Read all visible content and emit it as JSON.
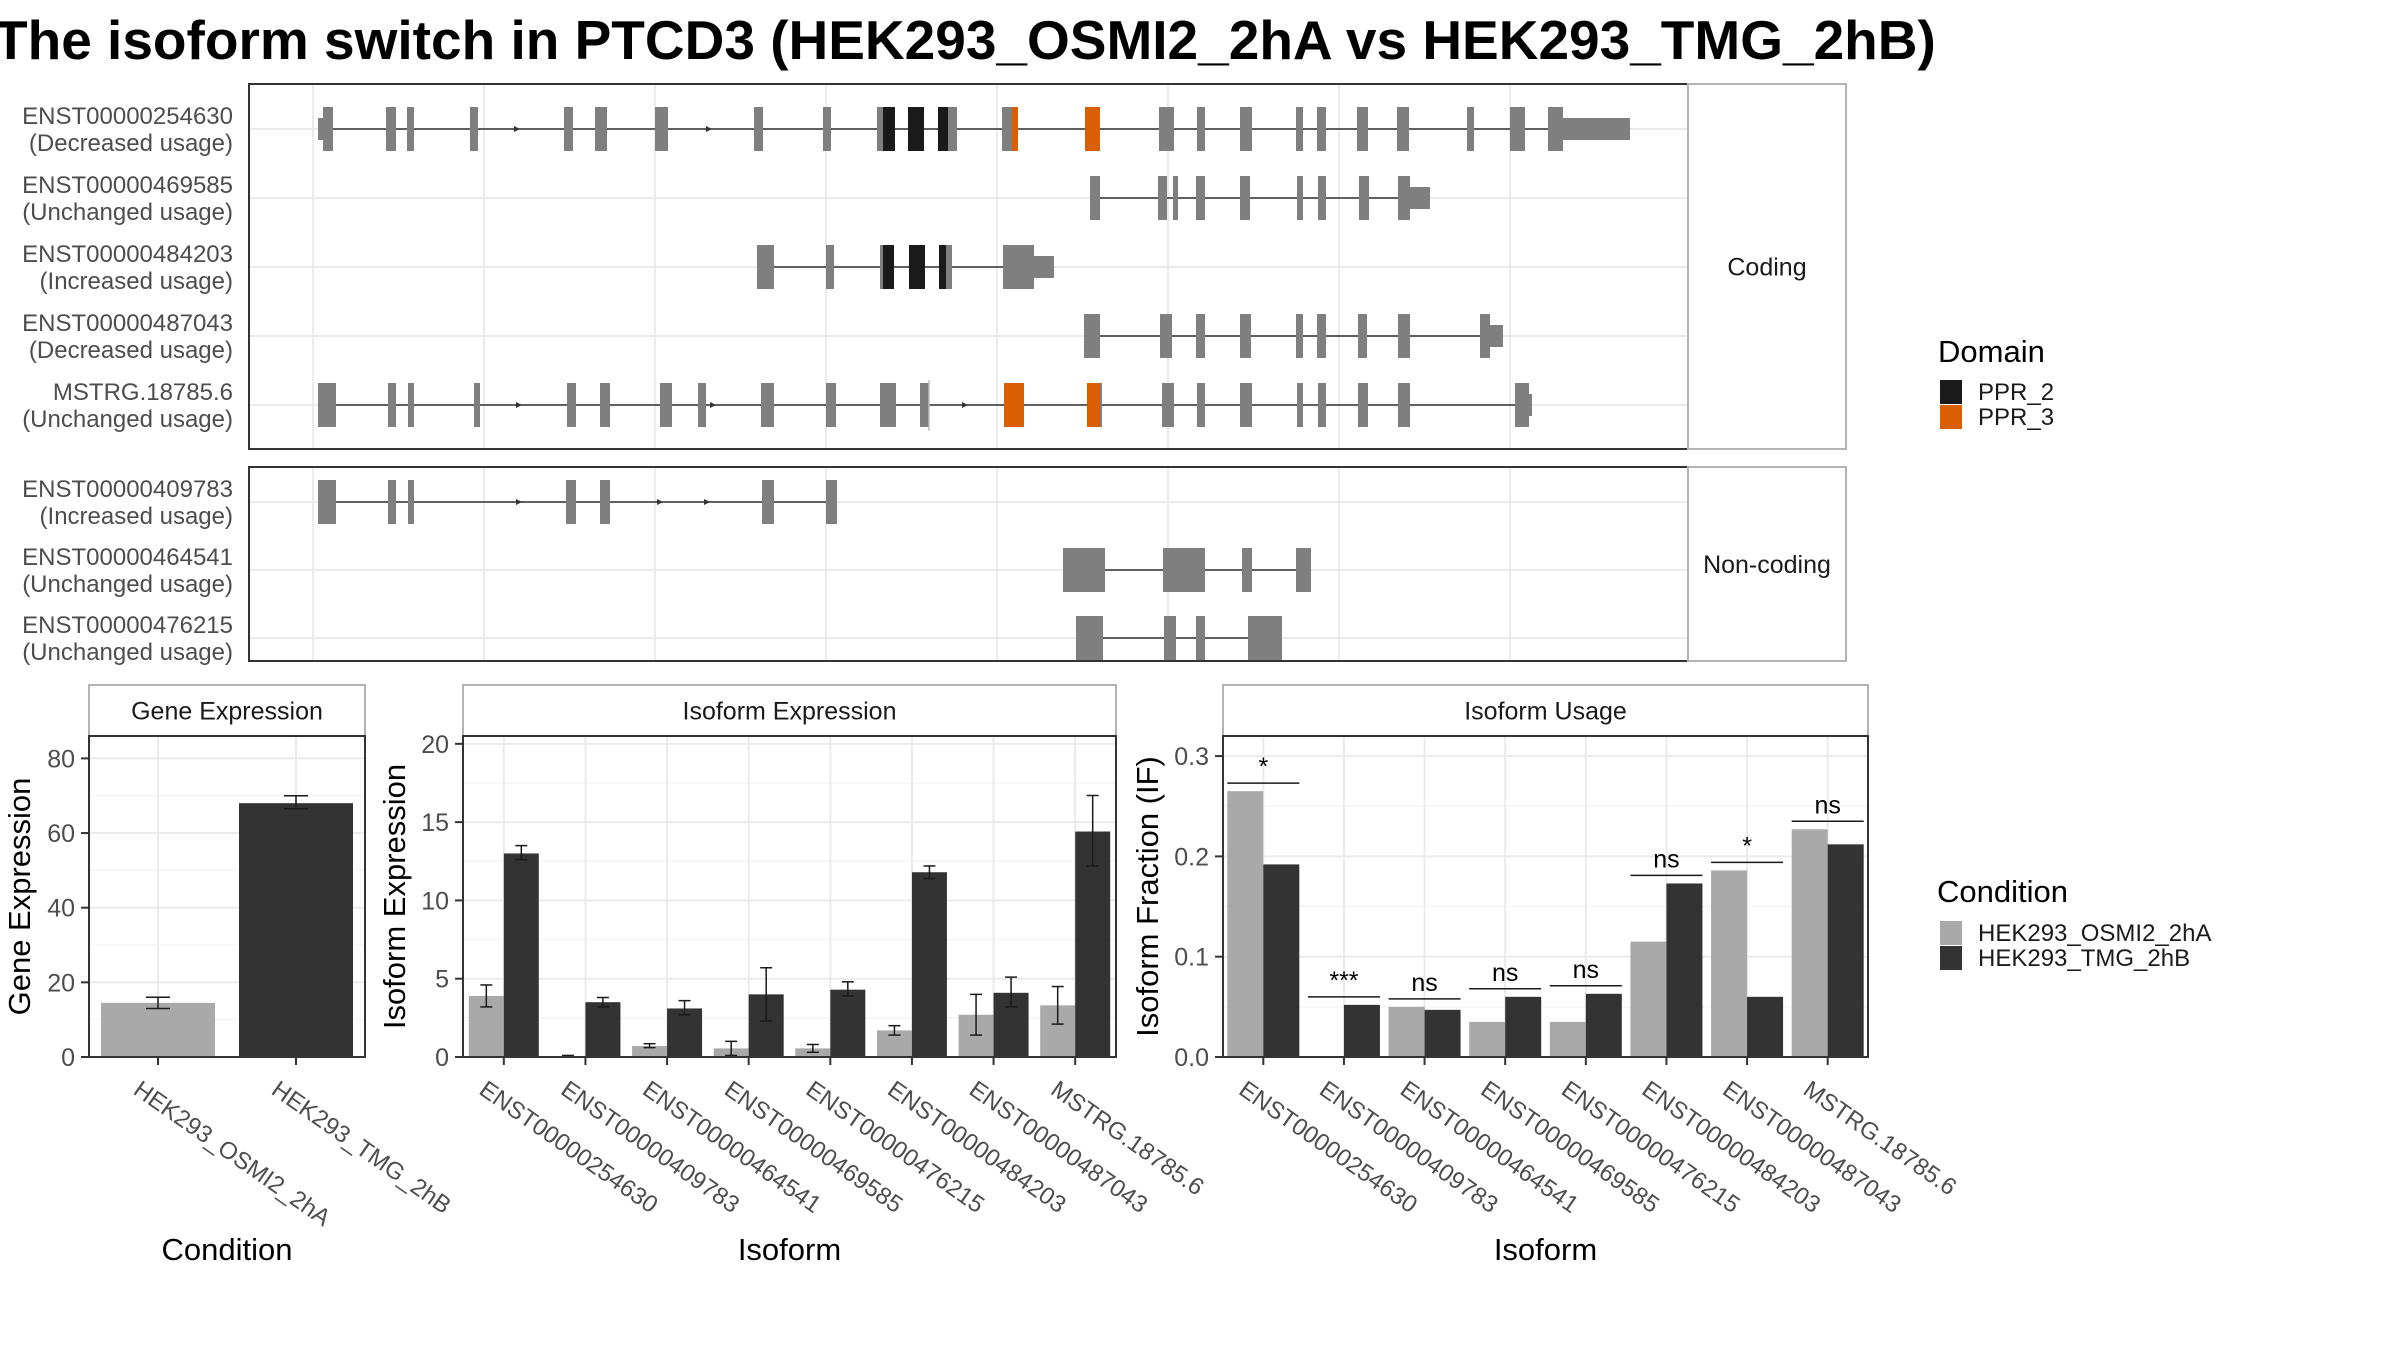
{
  "title": "The isoform switch in PTCD3 (HEK293_OSMI2_2hA vs HEK293_TMG_2hB)",
  "colors": {
    "exon": "#7f7f7f",
    "ppr2": "#1a1a1a",
    "ppr3": "#d95f02",
    "cond_a": "#a9a9a9",
    "cond_b": "#333333",
    "panel_border": "#333333",
    "strip_fill": "#ffffff",
    "grid": "#ebebeb"
  },
  "structure": {
    "facets": [
      "Coding",
      "Non-coding"
    ],
    "domain_legend": {
      "title": "Domain",
      "items": [
        {
          "name": "PPR_2",
          "color": "#1a1a1a"
        },
        {
          "name": "PPR_3",
          "color": "#d95f02"
        }
      ]
    },
    "coding": [
      {
        "id": "ENST00000254630",
        "usage": "(Decreased usage)"
      },
      {
        "id": "ENST00000469585",
        "usage": "(Unchanged usage)"
      },
      {
        "id": "ENST00000484203",
        "usage": "(Increased usage)"
      },
      {
        "id": "ENST00000487043",
        "usage": "(Decreased usage)"
      },
      {
        "id": "MSTRG.18785.6",
        "usage": "(Unchanged usage)"
      }
    ],
    "noncoding": [
      {
        "id": "ENST00000409783",
        "usage": "(Increased usage)"
      },
      {
        "id": "ENST00000464541",
        "usage": "(Unchanged usage)"
      },
      {
        "id": "ENST00000476215",
        "usage": "(Unchanged usage)"
      }
    ]
  },
  "chart_data": [
    {
      "type": "bar",
      "title": "Gene Expression",
      "xlabel": "Condition",
      "ylabel": "Gene Expression",
      "ylim": [
        0,
        86
      ],
      "yticks": [
        0,
        20,
        40,
        60,
        80
      ],
      "categories": [
        "HEK293_OSMI2_2hA",
        "HEK293_TMG_2hB"
      ],
      "values": [
        14.5,
        68
      ],
      "errors": [
        [
          13,
          16
        ],
        [
          66.5,
          70
        ]
      ],
      "colors": [
        "#a9a9a9",
        "#333333"
      ]
    },
    {
      "type": "bar",
      "title": "Isoform Expression",
      "xlabel": "Isoform",
      "ylabel": "Isoform Expression",
      "ylim": [
        0,
        20.5
      ],
      "yticks": [
        0,
        5,
        10,
        15,
        20
      ],
      "categories": [
        "ENST00000254630",
        "ENST00000409783",
        "ENST00000464541",
        "ENST00000469585",
        "ENST00000476215",
        "ENST00000484203",
        "ENST00000487043",
        "MSTRG.18785.6"
      ],
      "series": [
        {
          "name": "HEK293_OSMI2_2hA",
          "values": [
            3.9,
            0.05,
            0.7,
            0.55,
            0.55,
            1.7,
            2.7,
            3.3
          ],
          "errors": [
            [
              3.2,
              4.6
            ],
            [
              0,
              0.1
            ],
            [
              0.6,
              0.85
            ],
            [
              0.1,
              1.0
            ],
            [
              0.3,
              0.8
            ],
            [
              1.4,
              2.0
            ],
            [
              1.4,
              4.0
            ],
            [
              2.1,
              4.5
            ]
          ]
        },
        {
          "name": "HEK293_TMG_2hB",
          "values": [
            13.0,
            3.5,
            3.1,
            4.0,
            4.3,
            11.8,
            4.1,
            14.4
          ],
          "errors": [
            [
              12.6,
              13.5
            ],
            [
              3.2,
              3.8
            ],
            [
              2.7,
              3.6
            ],
            [
              2.3,
              5.7
            ],
            [
              3.9,
              4.8
            ],
            [
              11.4,
              12.2
            ],
            [
              3.2,
              5.1
            ],
            [
              12.2,
              16.7
            ]
          ]
        }
      ]
    },
    {
      "type": "bar",
      "title": "Isoform Usage",
      "xlabel": "Isoform",
      "ylabel": "Isoform Fraction (IF)",
      "ylim": [
        0,
        0.32
      ],
      "yticks": [
        0.0,
        0.1,
        0.2,
        0.3
      ],
      "categories": [
        "ENST00000254630",
        "ENST00000409783",
        "ENST00000464541",
        "ENST00000469585",
        "ENST00000476215",
        "ENST00000484203",
        "ENST00000487043",
        "MSTRG.18785.6"
      ],
      "series": [
        {
          "name": "HEK293_OSMI2_2hA",
          "values": [
            0.265,
            0.0,
            0.05,
            0.035,
            0.035,
            0.115,
            0.186,
            0.227
          ]
        },
        {
          "name": "HEK293_TMG_2hB",
          "values": [
            0.192,
            0.052,
            0.047,
            0.06,
            0.063,
            0.173,
            0.06,
            0.212
          ]
        }
      ],
      "significance": [
        "*",
        "***",
        "ns",
        "ns",
        "ns",
        "ns",
        "*",
        "ns"
      ]
    }
  ],
  "condition_legend": {
    "title": "Condition",
    "items": [
      {
        "name": "HEK293_OSMI2_2hA",
        "color": "#a9a9a9"
      },
      {
        "name": "HEK293_TMG_2hB",
        "color": "#333333"
      }
    ]
  }
}
